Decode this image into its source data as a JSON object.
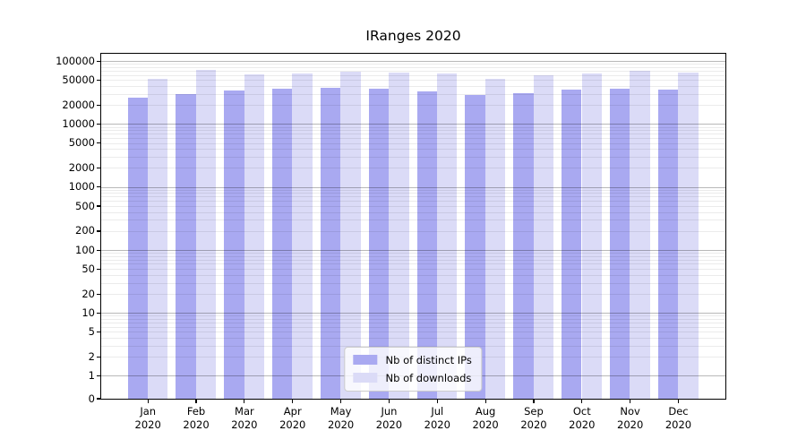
{
  "title": "IRanges 2020",
  "chart_data": {
    "type": "bar",
    "title": "IRanges 2020",
    "categories": [
      "Jan",
      "Feb",
      "Mar",
      "Apr",
      "May",
      "Jun",
      "Jul",
      "Aug",
      "Sep",
      "Oct",
      "Nov",
      "Dec"
    ],
    "category_year": "2020",
    "series": [
      {
        "name": "Nb of distinct IPs",
        "color": "#a9a9f1",
        "values": [
          26600,
          29700,
          34500,
          36100,
          38100,
          36600,
          33400,
          29300,
          31300,
          35000,
          36600,
          35000
        ]
      },
      {
        "name": "Nb of downloads",
        "color": "#dbdbf7",
        "values": [
          51900,
          72100,
          61100,
          64400,
          68100,
          65900,
          63800,
          52400,
          59700,
          63800,
          70400,
          65300
        ]
      }
    ],
    "yscale": "log",
    "ylim": [
      0,
      130000
    ],
    "yticks": [
      100000,
      50000,
      20000,
      10000,
      5000,
      2000,
      1000,
      500,
      200,
      100,
      50,
      20,
      10,
      5,
      2,
      1,
      0
    ],
    "grid": "on",
    "grid_major_color": "#b8b8b8",
    "grid_minor_color": "#ebebeb",
    "legend_position": "lower center",
    "xlabel": "",
    "ylabel": ""
  }
}
